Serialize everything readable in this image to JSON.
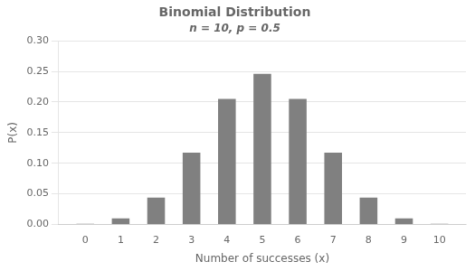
{
  "chart_data": {
    "type": "bar",
    "title": "Binomial Distribution",
    "subtitle": "n = 10, p = 0.5",
    "x": [
      0,
      1,
      2,
      3,
      4,
      5,
      6,
      7,
      8,
      9,
      10
    ],
    "values": [
      0.0009765625,
      0.009765625,
      0.04394531,
      0.1171875,
      0.20507813,
      0.24609375,
      0.20507813,
      0.1171875,
      0.04394531,
      0.009765625,
      0.0009765625
    ],
    "color": "#808080",
    "x_label": "Number of successes (x)",
    "y_label": "P(x)",
    "xlim": [
      -0.75,
      10.75
    ],
    "xticks": [
      0,
      1,
      2,
      3,
      4,
      5,
      6,
      7,
      8,
      9,
      10
    ],
    "ylim": [
      0,
      0.3
    ],
    "yticks": [
      {
        "value": 0.0,
        "label": "0.00"
      },
      {
        "value": 0.05,
        "label": "0.05"
      },
      {
        "value": 0.1,
        "label": "0.10"
      },
      {
        "value": 0.15,
        "label": "0.15"
      },
      {
        "value": 0.2,
        "label": "0.20"
      },
      {
        "value": 0.25,
        "label": "0.25"
      },
      {
        "value": 0.3,
        "label": "0.30"
      }
    ],
    "grid": true
  }
}
